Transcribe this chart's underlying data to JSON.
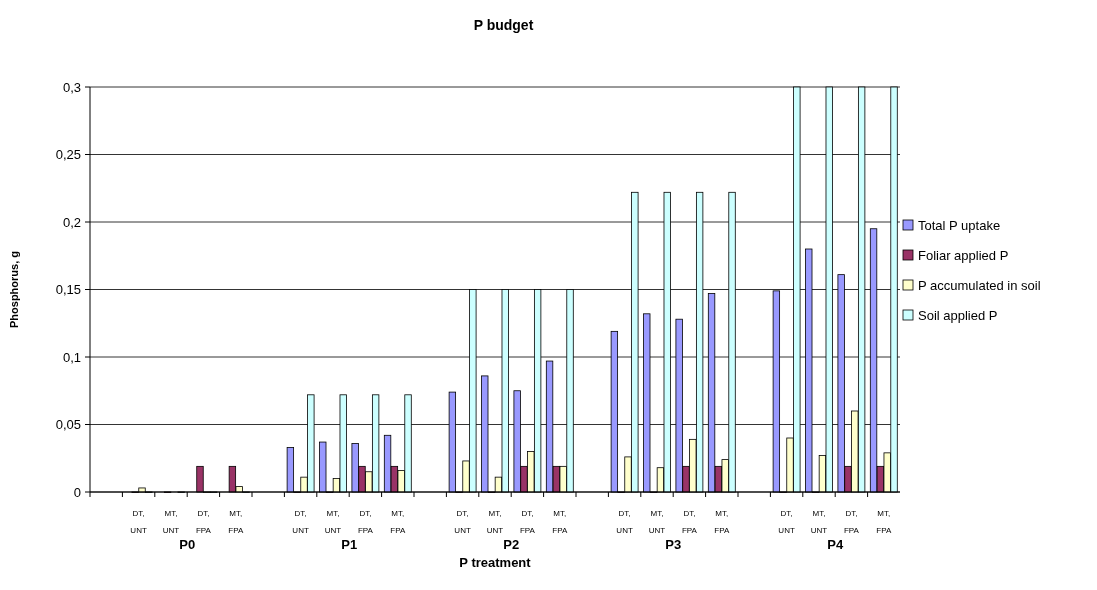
{
  "chart_data": {
    "type": "bar",
    "title": "P budget",
    "xlabel": "P treatment",
    "ylabel": "Phosphorus, g",
    "categories": [
      null,
      "DT, UNT",
      "MT, UNT",
      "DT, FPA",
      "MT, FPA",
      null,
      "DT, UNT",
      "MT, UNT",
      "DT, FPA",
      "MT, FPA",
      null,
      "DT, UNT",
      "MT, UNT",
      "DT, FPA",
      "MT, FPA",
      null,
      "DT, UNT",
      "MT, UNT",
      "DT, FPA",
      "MT, FPA",
      null,
      "DT, UNT",
      "MT, UNT",
      "DT, FPA",
      "MT, FPA"
    ],
    "annotations": [
      "P0",
      "P1",
      "P2",
      "P3",
      "P4"
    ],
    "series": [
      {
        "name": "Total P uptake",
        "color": "#9999ff",
        "values": [
          null,
          null,
          null,
          null,
          null,
          null,
          0.033,
          0.037,
          0.036,
          0.042,
          null,
          0.074,
          0.086,
          0.075,
          0.097,
          null,
          0.119,
          0.132,
          0.128,
          0.147,
          null,
          0.149,
          0.18,
          0.161,
          0.195
        ]
      },
      {
        "name": "Foliar applied P",
        "color": "#993366",
        "values": [
          null,
          0,
          0,
          0.019,
          0.019,
          null,
          0,
          0,
          0.019,
          0.019,
          null,
          0,
          0,
          0.019,
          0.019,
          null,
          0,
          0,
          0.019,
          0.019,
          null,
          0,
          0,
          0.019,
          0.019
        ]
      },
      {
        "name": "P accumulated in soil",
        "color": "#ffffcc",
        "values": [
          null,
          0.003,
          null,
          0,
          0.004,
          null,
          0.011,
          0.01,
          0.015,
          0.016,
          null,
          0.023,
          0.011,
          0.03,
          0.019,
          null,
          0.026,
          0.018,
          0.039,
          0.024,
          null,
          0.04,
          0.027,
          0.06,
          0.029
        ]
      },
      {
        "name": "Soil applied P",
        "color": "#ccffff",
        "values": [
          null,
          0,
          0,
          0,
          0,
          null,
          0.072,
          0.072,
          0.072,
          0.072,
          null,
          0.15,
          0.15,
          0.15,
          0.15,
          null,
          0.222,
          0.222,
          0.222,
          0.222,
          null,
          0.3,
          0.3,
          0.3,
          0.3
        ]
      }
    ],
    "ylim": [
      0,
      0.3
    ],
    "yticks": [
      0,
      {
        "value": 0.05,
        "label": "0,05"
      },
      {
        "value": 0.1,
        "label": "0,1"
      },
      {
        "value": 0.15,
        "label": "0,15"
      },
      {
        "value": 0.2,
        "label": "0,2"
      },
      {
        "value": 0.25,
        "label": "0,25"
      },
      {
        "value": 0.3,
        "label": "0,3"
      }
    ],
    "grid": "y",
    "legend": "right"
  }
}
